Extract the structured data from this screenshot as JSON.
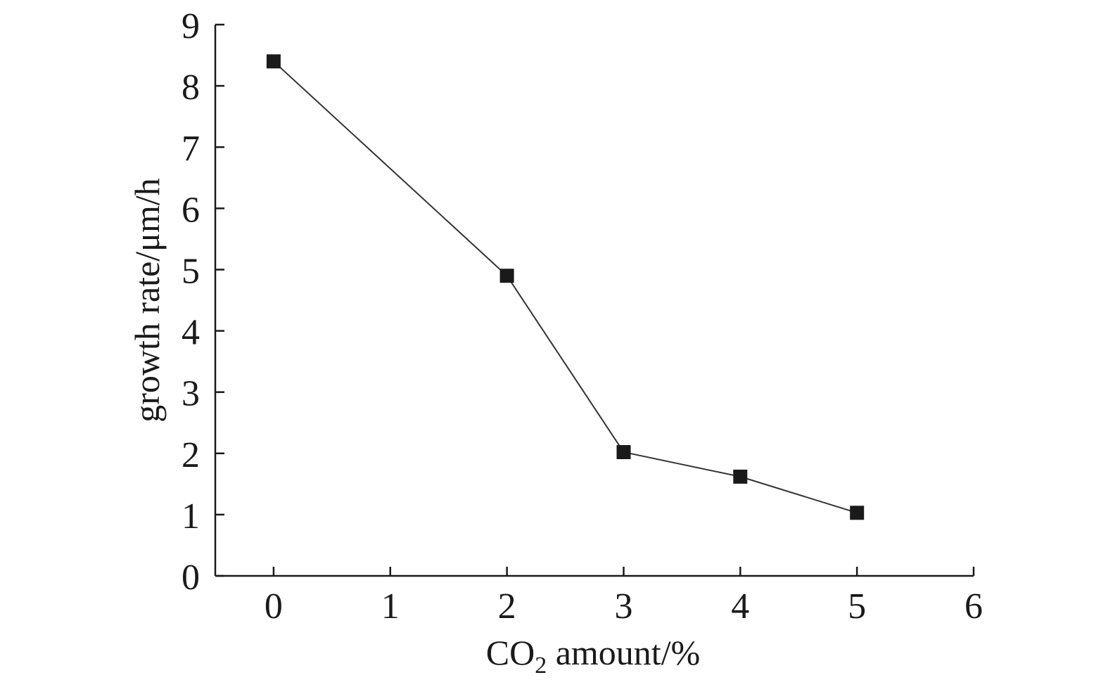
{
  "chart_data": {
    "type": "line",
    "title": "",
    "xlabel": "CO",
    "xlabel_sub": "2",
    "xlabel_suffix": " amount/%",
    "ylabel": "growth rate/μm/h",
    "xlim": [
      -0.5,
      6
    ],
    "ylim": [
      0,
      9
    ],
    "x_ticks": [
      0,
      1,
      2,
      3,
      4,
      5,
      6
    ],
    "y_ticks": [
      0,
      1,
      2,
      3,
      4,
      5,
      6,
      7,
      8,
      9
    ],
    "x_tick_labels": [
      "0",
      "1",
      "2",
      "3",
      "4",
      "5",
      "6"
    ],
    "y_tick_labels": [
      "0",
      "1",
      "2",
      "3",
      "4",
      "5",
      "6",
      "7",
      "8",
      "9"
    ],
    "grid": false,
    "legend": "none",
    "marker": "square",
    "line_color": "#333333",
    "marker_color": "#1a1a1a",
    "series": [
      {
        "x": [
          0,
          2,
          3,
          4,
          5
        ],
        "values": [
          8.4,
          4.9,
          2.02,
          1.62,
          1.03
        ]
      }
    ]
  }
}
